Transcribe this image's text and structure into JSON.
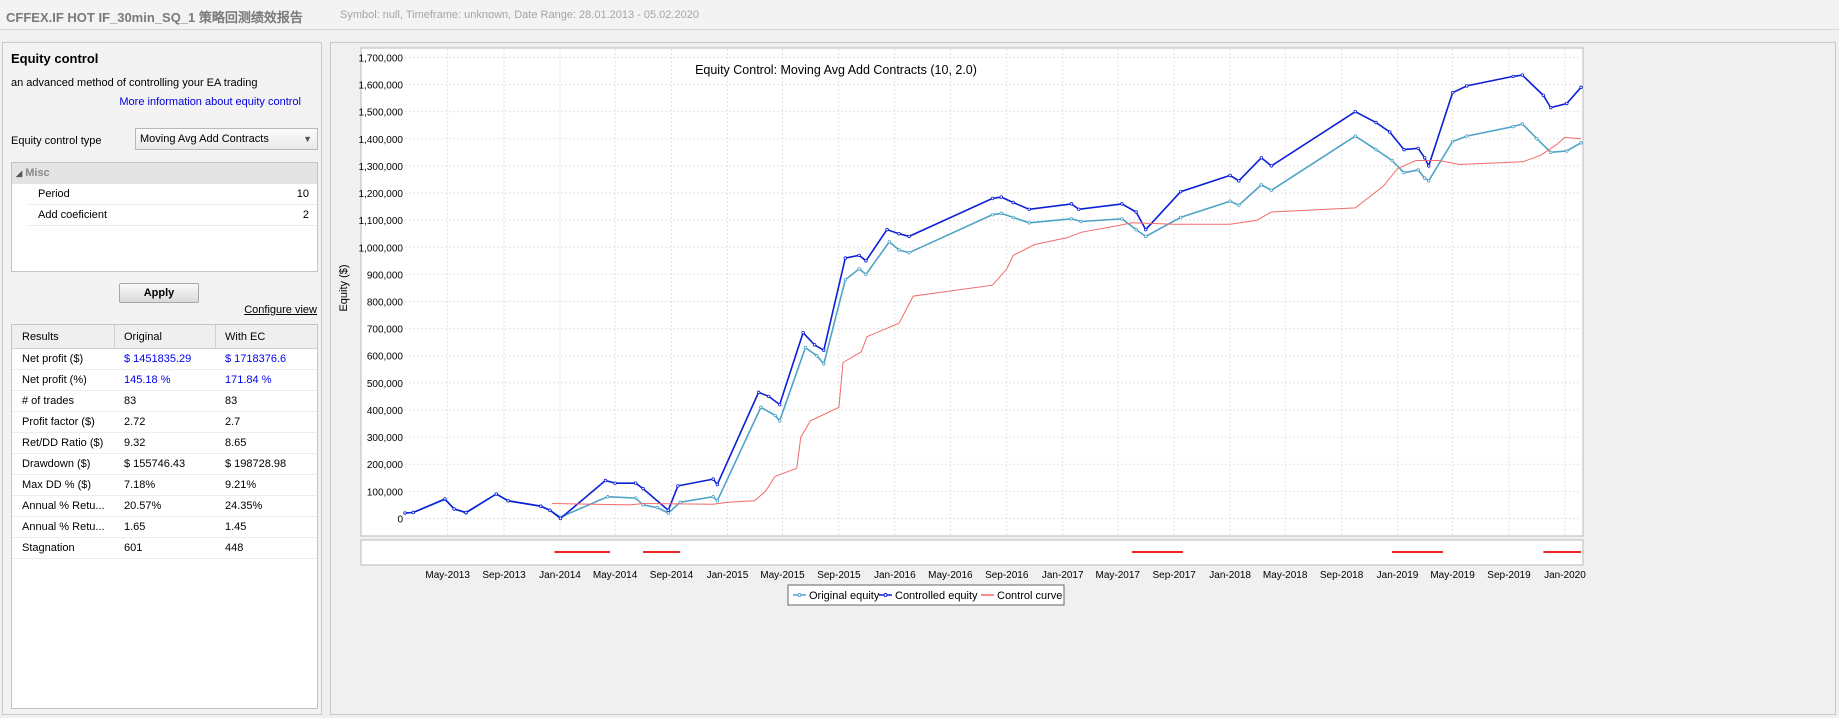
{
  "window": {
    "title": "CFFEX.IF HOT  IF_30min_SQ_1 策略回测绩效报告",
    "subtitle": "Symbol: null, Timeframe: unknown, Date Range: 28.01.2013 - 05.02.2020"
  },
  "equity_control": {
    "title": "Equity control",
    "description": "an advanced method of controlling your EA trading",
    "info_link": "More information about equity control",
    "type_label": "Equity control type",
    "type_value": "Moving Avg Add Contracts",
    "misc_header": "Misc",
    "misc": [
      {
        "label": "Period",
        "value": "10"
      },
      {
        "label": "Add coeficient",
        "value": "2"
      }
    ],
    "apply_label": "Apply",
    "configure_label": "Configure view"
  },
  "results": {
    "headers": [
      "Results",
      "Original",
      "With EC"
    ],
    "rows": [
      {
        "label": "Net profit ($)",
        "original": "$ 1451835.29",
        "with_ec": "$ 1718376.6",
        "highlight": true
      },
      {
        "label": "Net profit (%)",
        "original": "145.18 %",
        "with_ec": "171.84 %",
        "highlight": true
      },
      {
        "label": "# of trades",
        "original": "83",
        "with_ec": "83",
        "highlight": false
      },
      {
        "label": "Profit factor ($)",
        "original": "2.72",
        "with_ec": "2.7",
        "highlight": false
      },
      {
        "label": "Ret/DD Ratio ($)",
        "original": "9.32",
        "with_ec": "8.65",
        "highlight": false
      },
      {
        "label": "Drawdown ($)",
        "original": "$ 155746.43",
        "with_ec": "$ 198728.98",
        "highlight": false
      },
      {
        "label": "Max DD % ($)",
        "original": "7.18%",
        "with_ec": "9.21%",
        "highlight": false
      },
      {
        "label": "Annual % Retu...",
        "original": "20.57%",
        "with_ec": "24.35%",
        "highlight": false
      },
      {
        "label": "Annual % Retu...",
        "original": "1.65",
        "with_ec": "1.45",
        "highlight": false
      },
      {
        "label": "Stagnation",
        "original": "601",
        "with_ec": "448",
        "highlight": false
      }
    ]
  },
  "chart_data": {
    "type": "line",
    "title": "Equity Control: Moving Avg Add Contracts (10, 2.0)",
    "ylabel": "Equity ($)",
    "ylim": [
      -50000,
      1720000
    ],
    "xlim": [
      "2013-01-28",
      "2020-02-05"
    ],
    "yticks": [
      "1,700,000",
      "1,600,000",
      "1,500,000",
      "1,400,000",
      "1,300,000",
      "1,200,000",
      "1,100,000",
      "1,000,000",
      "900,000",
      "800,000",
      "700,000",
      "600,000",
      "500,000",
      "400,000",
      "300,000",
      "200,000",
      "100,000",
      "0"
    ],
    "ytick_values": [
      1700000,
      1600000,
      1500000,
      1400000,
      1300000,
      1200000,
      1100000,
      1000000,
      900000,
      800000,
      700000,
      600000,
      500000,
      400000,
      300000,
      200000,
      100000,
      0
    ],
    "xticks": [
      {
        "date": "2013-05-01",
        "label": "May-2013"
      },
      {
        "date": "2013-09-01",
        "label": "Sep-2013"
      },
      {
        "date": "2014-01-01",
        "label": "Jan-2014"
      },
      {
        "date": "2014-05-01",
        "label": "May-2014"
      },
      {
        "date": "2014-09-01",
        "label": "Sep-2014"
      },
      {
        "date": "2015-01-01",
        "label": "Jan-2015"
      },
      {
        "date": "2015-05-01",
        "label": "May-2015"
      },
      {
        "date": "2015-09-01",
        "label": "Sep-2015"
      },
      {
        "date": "2016-01-01",
        "label": "Jan-2016"
      },
      {
        "date": "2016-05-01",
        "label": "May-2016"
      },
      {
        "date": "2016-09-01",
        "label": "Sep-2016"
      },
      {
        "date": "2017-01-01",
        "label": "Jan-2017"
      },
      {
        "date": "2017-05-01",
        "label": "May-2017"
      },
      {
        "date": "2017-09-01",
        "label": "Sep-2017"
      },
      {
        "date": "2018-01-01",
        "label": "Jan-2018"
      },
      {
        "date": "2018-05-01",
        "label": "May-2018"
      },
      {
        "date": "2018-09-01",
        "label": "Sep-2018"
      },
      {
        "date": "2019-01-01",
        "label": "Jan-2019"
      },
      {
        "date": "2019-05-01",
        "label": "May-2019"
      },
      {
        "date": "2019-09-01",
        "label": "Sep-2019"
      },
      {
        "date": "2020-01-01",
        "label": "Jan-2020"
      }
    ],
    "grid": true,
    "legend_position": "bottom-center",
    "series": [
      {
        "name": "Original equity",
        "color": "#4fa3c7",
        "points": [
          [
            "2013-01-28",
            20000
          ],
          [
            "2013-02-15",
            22000
          ],
          [
            "2013-04-25",
            70000
          ],
          [
            "2013-05-15",
            35000
          ],
          [
            "2013-06-10",
            20000
          ],
          [
            "2013-08-15",
            90000
          ],
          [
            "2013-09-10",
            65000
          ],
          [
            "2013-11-20",
            45000
          ],
          [
            "2013-12-10",
            30000
          ],
          [
            "2014-01-02",
            5000
          ],
          [
            "2014-04-15",
            80000
          ],
          [
            "2014-06-15",
            75000
          ],
          [
            "2014-07-01",
            50000
          ],
          [
            "2014-08-01",
            40000
          ],
          [
            "2014-08-25",
            20000
          ],
          [
            "2014-09-20",
            60000
          ],
          [
            "2014-12-01",
            80000
          ],
          [
            "2014-12-10",
            65000
          ],
          [
            "2015-03-15",
            410000
          ],
          [
            "2015-04-15",
            380000
          ],
          [
            "2015-04-25",
            360000
          ],
          [
            "2015-06-20",
            630000
          ],
          [
            "2015-07-15",
            600000
          ],
          [
            "2015-07-30",
            570000
          ],
          [
            "2015-09-15",
            880000
          ],
          [
            "2015-10-15",
            920000
          ],
          [
            "2015-10-30",
            900000
          ],
          [
            "2015-12-20",
            1020000
          ],
          [
            "2016-01-10",
            990000
          ],
          [
            "2016-02-01",
            980000
          ],
          [
            "2016-08-01",
            1120000
          ],
          [
            "2016-08-20",
            1125000
          ],
          [
            "2016-09-15",
            1110000
          ],
          [
            "2016-10-20",
            1090000
          ],
          [
            "2017-01-20",
            1105000
          ],
          [
            "2017-02-10",
            1095000
          ],
          [
            "2017-05-10",
            1105000
          ],
          [
            "2017-06-10",
            1065000
          ],
          [
            "2017-07-01",
            1040000
          ],
          [
            "2017-09-15",
            1110000
          ],
          [
            "2018-01-01",
            1170000
          ],
          [
            "2018-01-20",
            1155000
          ],
          [
            "2018-03-10",
            1230000
          ],
          [
            "2018-04-01",
            1210000
          ],
          [
            "2018-10-01",
            1410000
          ],
          [
            "2018-11-15",
            1360000
          ],
          [
            "2018-12-20",
            1320000
          ],
          [
            "2019-01-15",
            1275000
          ],
          [
            "2019-02-15",
            1285000
          ],
          [
            "2019-03-01",
            1255000
          ],
          [
            "2019-03-10",
            1245000
          ],
          [
            "2019-05-01",
            1390000
          ],
          [
            "2019-06-01",
            1410000
          ],
          [
            "2019-09-10",
            1445000
          ],
          [
            "2019-09-30",
            1455000
          ],
          [
            "2019-11-01",
            1400000
          ],
          [
            "2019-12-01",
            1350000
          ],
          [
            "2020-01-05",
            1355000
          ],
          [
            "2020-02-05",
            1385000
          ]
        ]
      },
      {
        "name": "Controlled equity",
        "color": "#0b1fd6",
        "points": [
          [
            "2013-01-28",
            20000
          ],
          [
            "2013-02-15",
            22000
          ],
          [
            "2013-04-25",
            72000
          ],
          [
            "2013-05-15",
            35000
          ],
          [
            "2013-06-10",
            22000
          ],
          [
            "2013-08-15",
            90000
          ],
          [
            "2013-09-10",
            65000
          ],
          [
            "2013-11-20",
            45000
          ],
          [
            "2013-12-10",
            30000
          ],
          [
            "2014-01-02",
            0
          ],
          [
            "2014-04-10",
            140000
          ],
          [
            "2014-05-01",
            130000
          ],
          [
            "2014-06-15",
            130000
          ],
          [
            "2014-07-01",
            110000
          ],
          [
            "2014-08-25",
            30000
          ],
          [
            "2014-09-15",
            120000
          ],
          [
            "2014-12-01",
            145000
          ],
          [
            "2014-12-10",
            125000
          ],
          [
            "2015-03-10",
            465000
          ],
          [
            "2015-04-01",
            450000
          ],
          [
            "2015-04-25",
            420000
          ],
          [
            "2015-06-15",
            685000
          ],
          [
            "2015-07-10",
            640000
          ],
          [
            "2015-07-30",
            620000
          ],
          [
            "2015-09-15",
            960000
          ],
          [
            "2015-10-15",
            970000
          ],
          [
            "2015-10-30",
            950000
          ],
          [
            "2015-12-15",
            1065000
          ],
          [
            "2016-01-10",
            1050000
          ],
          [
            "2016-02-01",
            1040000
          ],
          [
            "2016-08-01",
            1180000
          ],
          [
            "2016-08-20",
            1185000
          ],
          [
            "2016-09-15",
            1165000
          ],
          [
            "2016-10-20",
            1140000
          ],
          [
            "2017-01-20",
            1160000
          ],
          [
            "2017-02-05",
            1140000
          ],
          [
            "2017-05-10",
            1160000
          ],
          [
            "2017-06-10",
            1130000
          ],
          [
            "2017-07-01",
            1065000
          ],
          [
            "2017-09-15",
            1205000
          ],
          [
            "2018-01-01",
            1265000
          ],
          [
            "2018-01-20",
            1245000
          ],
          [
            "2018-03-10",
            1330000
          ],
          [
            "2018-04-01",
            1300000
          ],
          [
            "2018-10-01",
            1500000
          ],
          [
            "2018-11-15",
            1460000
          ],
          [
            "2018-12-15",
            1425000
          ],
          [
            "2019-01-15",
            1360000
          ],
          [
            "2019-02-15",
            1365000
          ],
          [
            "2019-03-01",
            1330000
          ],
          [
            "2019-03-10",
            1300000
          ],
          [
            "2019-05-01",
            1570000
          ],
          [
            "2019-06-01",
            1595000
          ],
          [
            "2019-09-10",
            1630000
          ],
          [
            "2019-09-30",
            1635000
          ],
          [
            "2019-11-15",
            1560000
          ],
          [
            "2019-12-01",
            1515000
          ],
          [
            "2020-01-05",
            1530000
          ],
          [
            "2020-02-05",
            1590000
          ]
        ]
      },
      {
        "name": "Control curve",
        "color": "#f26a6a",
        "points": [
          [
            "2013-12-15",
            55000
          ],
          [
            "2014-06-01",
            50000
          ],
          [
            "2014-07-01",
            55000
          ],
          [
            "2014-12-01",
            52000
          ],
          [
            "2015-01-01",
            60000
          ],
          [
            "2015-03-01",
            65000
          ],
          [
            "2015-03-25",
            100000
          ],
          [
            "2015-04-15",
            155000
          ],
          [
            "2015-06-01",
            185000
          ],
          [
            "2015-06-10",
            300000
          ],
          [
            "2015-07-01",
            360000
          ],
          [
            "2015-09-01",
            410000
          ],
          [
            "2015-09-10",
            575000
          ],
          [
            "2015-10-20",
            615000
          ],
          [
            "2015-11-01",
            670000
          ],
          [
            "2016-01-10",
            720000
          ],
          [
            "2016-02-10",
            820000
          ],
          [
            "2016-08-01",
            860000
          ],
          [
            "2016-09-01",
            920000
          ],
          [
            "2016-09-15",
            970000
          ],
          [
            "2016-11-01",
            1010000
          ],
          [
            "2017-01-10",
            1035000
          ],
          [
            "2017-02-10",
            1055000
          ],
          [
            "2017-05-01",
            1080000
          ],
          [
            "2017-06-01",
            1090000
          ],
          [
            "2017-09-01",
            1085000
          ],
          [
            "2018-01-01",
            1085000
          ],
          [
            "2018-03-01",
            1100000
          ],
          [
            "2018-04-01",
            1130000
          ],
          [
            "2018-10-01",
            1145000
          ],
          [
            "2018-12-01",
            1225000
          ],
          [
            "2019-01-01",
            1290000
          ],
          [
            "2019-02-10",
            1320000
          ],
          [
            "2019-04-01",
            1320000
          ],
          [
            "2019-05-15",
            1305000
          ],
          [
            "2019-10-01",
            1315000
          ],
          [
            "2019-11-10",
            1340000
          ],
          [
            "2019-12-15",
            1380000
          ],
          [
            "2020-01-01",
            1405000
          ],
          [
            "2020-02-05",
            1400000
          ]
        ]
      }
    ],
    "control_inactive_periods": [
      [
        "2013-12-20",
        "2014-04-20"
      ],
      [
        "2014-07-01",
        "2014-09-20"
      ],
      [
        "2017-06-01",
        "2017-09-20"
      ],
      [
        "2018-12-20",
        "2019-04-10"
      ],
      [
        "2019-11-15",
        "2020-02-05"
      ]
    ]
  }
}
